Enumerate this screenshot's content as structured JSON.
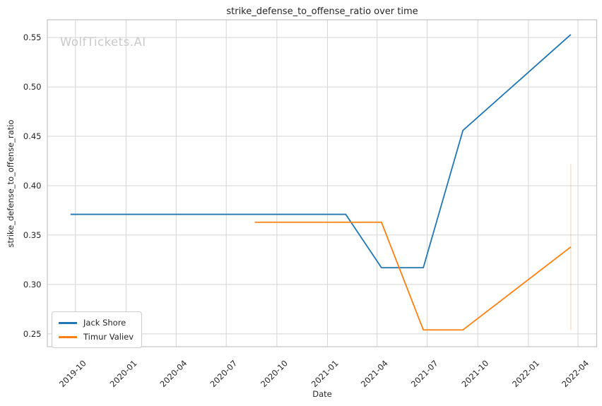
{
  "watermark": "WolfTickets.AI",
  "chart_data": {
    "type": "line",
    "title": "strike_defense_to_offense_ratio over time",
    "xlabel": "Date",
    "ylabel": "strike_defense_to_offense_ratio",
    "grid": true,
    "legend_position": "lower-left",
    "xlim": [
      "2019-08-11",
      "2022-05-05"
    ],
    "ylim": [
      0.237,
      0.568
    ],
    "x_ticks": [
      "2019-10",
      "2020-01",
      "2020-04",
      "2020-07",
      "2020-10",
      "2021-01",
      "2021-04",
      "2021-07",
      "2021-10",
      "2022-01",
      "2022-04"
    ],
    "y_ticks": [
      0.25,
      0.3,
      0.35,
      0.4,
      0.45,
      0.5,
      0.55
    ],
    "series": [
      {
        "name": "Jack Shore",
        "color": "#1f77b4",
        "points": [
          [
            "2019-09-22",
            0.371
          ],
          [
            "2021-02-03",
            0.371
          ],
          [
            "2021-04-09",
            0.317
          ],
          [
            "2021-06-24",
            0.317
          ],
          [
            "2021-09-04",
            0.456
          ],
          [
            "2022-03-19",
            0.553
          ]
        ]
      },
      {
        "name": "Timur Valiev",
        "color": "#ff7f0e",
        "points": [
          [
            "2020-08-22",
            0.363
          ],
          [
            "2021-04-09",
            0.363
          ],
          [
            "2021-06-24",
            0.254
          ],
          [
            "2021-09-04",
            0.254
          ],
          [
            "2022-03-19",
            0.338
          ]
        ]
      }
    ],
    "annotations": [
      {
        "type": "vline",
        "date": "2022-03-19",
        "y0": 0.254,
        "y1": 0.422,
        "color": "#ff7f0e",
        "opacity": 0.28
      }
    ],
    "colors": {
      "grid": "#d4d4d4",
      "spine": "#c2c2c2",
      "text": "#262626",
      "watermark": "#c9c9c9",
      "background": "#ffffff"
    }
  }
}
